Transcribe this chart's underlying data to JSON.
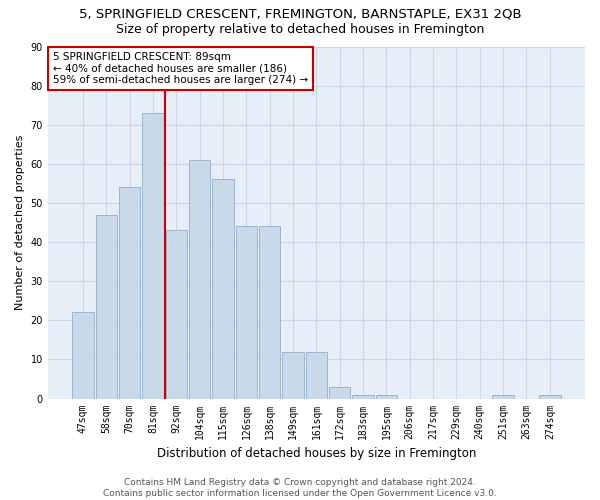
{
  "title": "5, SPRINGFIELD CRESCENT, FREMINGTON, BARNSTAPLE, EX31 2QB",
  "subtitle": "Size of property relative to detached houses in Fremington",
  "xlabel": "Distribution of detached houses by size in Fremington",
  "ylabel": "Number of detached properties",
  "categories": [
    "47sqm",
    "58sqm",
    "70sqm",
    "81sqm",
    "92sqm",
    "104sqm",
    "115sqm",
    "126sqm",
    "138sqm",
    "149sqm",
    "161sqm",
    "172sqm",
    "183sqm",
    "195sqm",
    "206sqm",
    "217sqm",
    "229sqm",
    "240sqm",
    "251sqm",
    "263sqm",
    "274sqm"
  ],
  "values": [
    22,
    47,
    54,
    73,
    43,
    61,
    56,
    44,
    44,
    12,
    12,
    3,
    1,
    1,
    0,
    0,
    0,
    0,
    1,
    0,
    1
  ],
  "bar_color": "#c8d9ea",
  "bar_edge_color": "#9ab5cc",
  "vline_color": "#cc0000",
  "annotation_text": "5 SPRINGFIELD CRESCENT: 89sqm\n← 40% of detached houses are smaller (186)\n59% of semi-detached houses are larger (274) →",
  "annotation_box_color": "#ffffff",
  "annotation_box_edge_color": "#cc0000",
  "ylim": [
    0,
    90
  ],
  "yticks": [
    0,
    10,
    20,
    30,
    40,
    50,
    60,
    70,
    80,
    90
  ],
  "grid_color": "#ccd6e8",
  "background_color": "#e8eef8",
  "footer_text": "Contains HM Land Registry data © Crown copyright and database right 2024.\nContains public sector information licensed under the Open Government Licence v3.0.",
  "title_fontsize": 9.5,
  "subtitle_fontsize": 9,
  "xlabel_fontsize": 8.5,
  "ylabel_fontsize": 8,
  "tick_fontsize": 7,
  "annotation_fontsize": 7.5,
  "footer_fontsize": 6.5
}
